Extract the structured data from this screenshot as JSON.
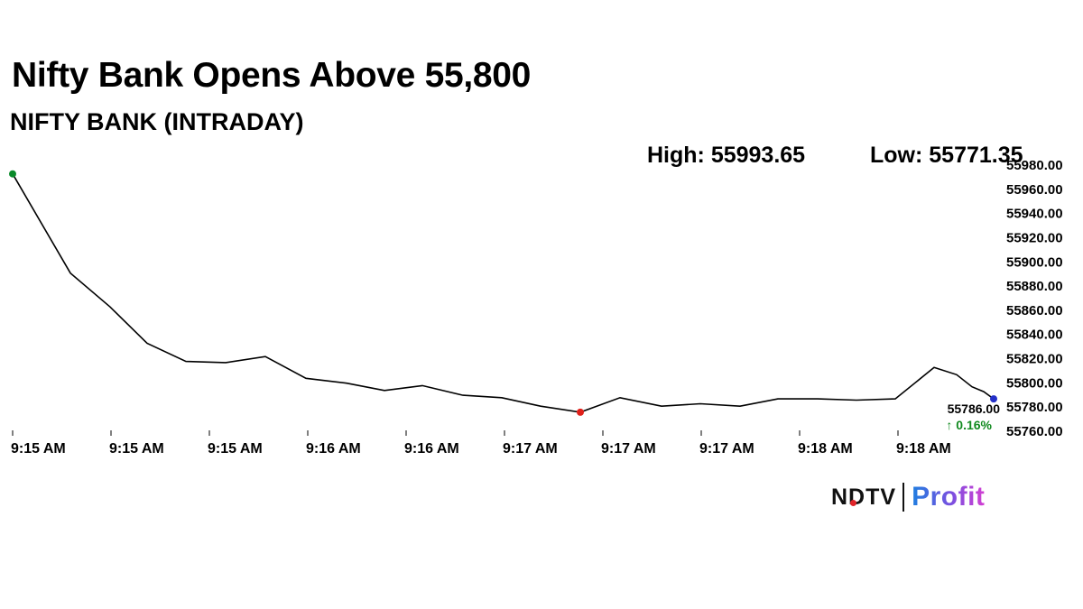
{
  "headline": "Nifty Bank Opens Above 55,800",
  "subtitle": "NIFTY BANK (INTRADAY)",
  "high_label": "High: 55993.65",
  "low_label": "Low: 55771.35",
  "brand": {
    "ndtv": "NDTV",
    "profit": "Profit"
  },
  "chart_data": {
    "type": "line",
    "title": "NIFTY BANK (INTRADAY)",
    "ylim": [
      55760,
      55980
    ],
    "y_ticks": [
      "55760.00",
      "55780.00",
      "55800.00",
      "55820.00",
      "55840.00",
      "55860.00",
      "55880.00",
      "55900.00",
      "55920.00",
      "55940.00",
      "55960.00",
      "55980.00"
    ],
    "x_ticks": [
      "9:15 AM",
      "9:15 AM",
      "9:15 AM",
      "9:16 AM",
      "9:16 AM",
      "9:17 AM",
      "9:17 AM",
      "9:17 AM",
      "9:18 AM",
      "9:18 AM"
    ],
    "series": [
      {
        "values": [
          55972,
          55890,
          55862,
          55832,
          55817,
          55816,
          55821,
          55803,
          55799,
          55793,
          55797,
          55789,
          55787,
          55780,
          55775,
          55787,
          55780,
          55782,
          55780,
          55786,
          55786,
          55785,
          55786,
          55812,
          55806,
          55796,
          55792,
          55786
        ]
      }
    ],
    "markers": {
      "start_color": "#0a8a2a",
      "low_index": 14,
      "low_color": "#e0201a",
      "end_color": "#2430c8"
    },
    "last_value": "55786.00",
    "change": "↑ 0.16%",
    "change_color": "#118a1f",
    "grid": false
  }
}
